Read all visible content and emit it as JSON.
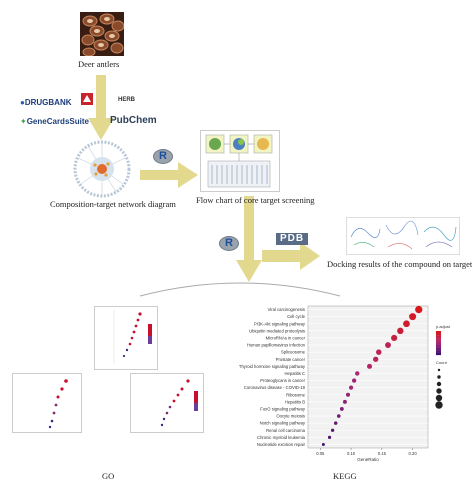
{
  "labels": {
    "deer_antlers": "Deer antlers",
    "network": "Composition-target network diagram",
    "flowchart": "Flow chart of core target screening",
    "docking": "Docking results of the compound on target",
    "go": "GO",
    "kegg": "KEGG"
  },
  "databases": {
    "drugbank": "DRUGBANK",
    "herb": "HERB",
    "genecards": "GeneCardsSuite",
    "pubchem": "PubChem",
    "pdb": "PDB"
  },
  "tools": {
    "r": "R"
  },
  "colors": {
    "arrow": "#e2d98e",
    "kegg_high": "#d7191c",
    "kegg_low": "#3b0f70"
  },
  "kegg_chart": {
    "xlabel": "GeneRatio",
    "ticks": [
      "0.05",
      "0.10",
      "0.15",
      "0.20"
    ],
    "legend_color_title": "p.adjust",
    "legend_size_title": "Count",
    "pathways": [
      "Viral carcinogenesis",
      "Cell cycle",
      "PI3K-Akt signaling pathway",
      "Ubiquitin mediated proteolysis",
      "MicroRNAs in cancer",
      "Human papillomavirus infection",
      "Spliceosome",
      "Prostate cancer",
      "Thyroid hormone signaling pathway",
      "Hepatitis C",
      "Proteoglycans in cancer",
      "Coronavirus disease - COVID-19",
      "Ribosome",
      "Hepatitis B",
      "FoxO signaling pathway",
      "Oocyte meiosis",
      "Notch signaling pathway",
      "Renal cell carcinoma",
      "Chronic myeloid leukemia",
      "Nucleotide excision repair"
    ],
    "gene_ratio": [
      0.21,
      0.2,
      0.19,
      0.18,
      0.17,
      0.16,
      0.145,
      0.14,
      0.13,
      0.11,
      0.105,
      0.1,
      0.095,
      0.09,
      0.085,
      0.08,
      0.075,
      0.07,
      0.065,
      0.055
    ],
    "color_scale": [
      0,
      0.05,
      0.1,
      0.15,
      0.2,
      0.3,
      0.3,
      0.35,
      0.4,
      0.5,
      0.55,
      0.55,
      0.6,
      0.65,
      0.7,
      0.75,
      0.8,
      0.85,
      0.9,
      1
    ]
  }
}
